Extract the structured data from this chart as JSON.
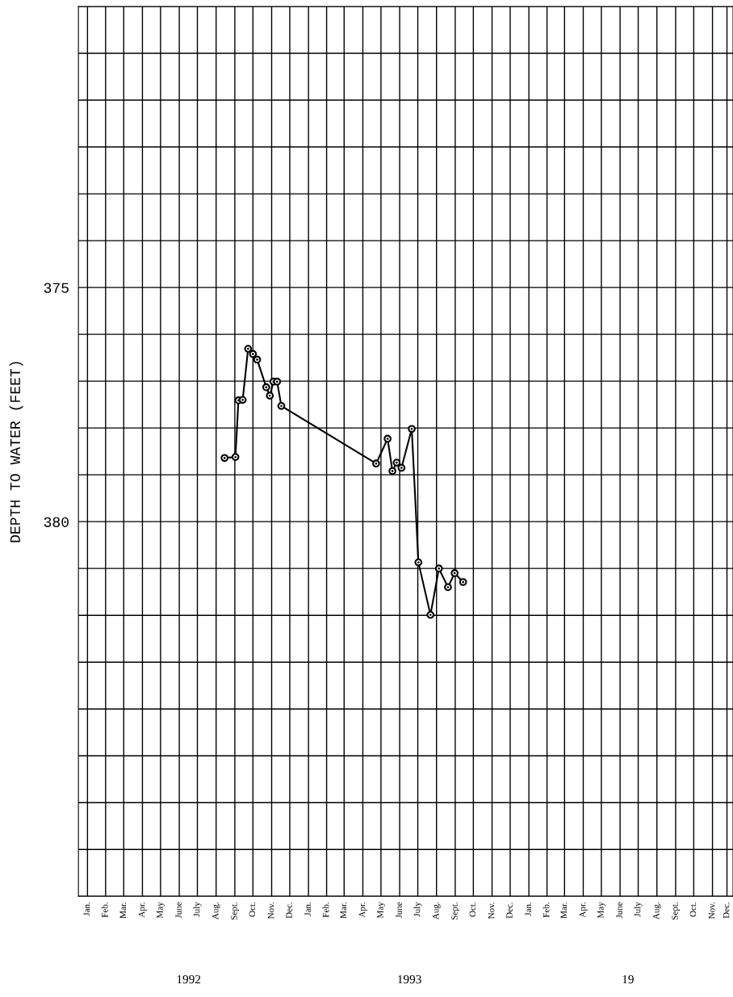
{
  "chart_data": {
    "type": "line",
    "ylabel": "DEPTH TO WATER (FEET)",
    "x": [
      "1992-08-30",
      "1992-09-17",
      "1992-09-22",
      "1992-09-29",
      "1992-10-08",
      "1992-10-16",
      "1992-10-23",
      "1992-11-07",
      "1992-11-13",
      "1992-11-19",
      "1992-11-25",
      "1992-12-02",
      "1993-05-08",
      "1993-05-27",
      "1993-06-04",
      "1993-06-11",
      "1993-06-19",
      "1993-07-06",
      "1993-07-17",
      "1993-08-06",
      "1993-08-20",
      "1993-09-04",
      "1993-09-15",
      "1993-09-29"
    ],
    "series": [
      {
        "color": "#000000",
        "values": [
          378.64,
          378.62,
          377.41,
          377.4,
          376.31,
          376.42,
          376.54,
          377.13,
          377.31,
          377.01,
          377.01,
          377.53,
          378.76,
          378.23,
          378.92,
          378.74,
          378.85,
          378.02,
          380.87,
          381.99,
          381.0,
          381.4,
          381.1,
          381.29
        ]
      }
    ],
    "ylim": [
      388,
      369
    ],
    "yticks": [
      {
        "value": 369,
        "label": null
      },
      {
        "value": 370,
        "label": null
      },
      {
        "value": 371,
        "label": null
      },
      {
        "value": 372,
        "label": null
      },
      {
        "value": 373,
        "label": null
      },
      {
        "value": 374,
        "label": null
      },
      375,
      {
        "value": 376,
        "label": null
      },
      {
        "value": 377,
        "label": null
      },
      {
        "value": 378,
        "label": null
      },
      {
        "value": 379,
        "label": null
      },
      380,
      {
        "value": 381,
        "label": null
      },
      {
        "value": 382,
        "label": null
      },
      {
        "value": 383,
        "label": null
      },
      {
        "value": 384,
        "label": null
      },
      {
        "value": 385,
        "label": null
      },
      {
        "value": 386,
        "label": null
      },
      {
        "value": 387,
        "label": null
      },
      {
        "value": 388,
        "label": null
      }
    ],
    "xlim": [
      "1992-01-01",
      "1994-12-20"
    ],
    "xticks": [
      {
        "value": "1992-01-16",
        "label": "Jan."
      },
      {
        "value": "1992-02-15",
        "label": "Feb."
      },
      {
        "value": "1992-03-16",
        "label": "Mar."
      },
      {
        "value": "1992-04-16",
        "label": "Apr."
      },
      {
        "value": "1992-05-16",
        "label": "May"
      },
      {
        "value": "1992-06-16",
        "label": "June"
      },
      {
        "value": "1992-07-16",
        "label": "July"
      },
      {
        "value": "1992-08-16",
        "label": "Aug."
      },
      {
        "value": "1992-09-16",
        "label": "Sept."
      },
      {
        "value": "1992-10-16",
        "label": "Oct."
      },
      {
        "value": "1992-11-16",
        "label": "Nov."
      },
      {
        "value": "1992-12-16",
        "label": "Dec."
      },
      {
        "value": "1993-01-16",
        "label": "Jan."
      },
      {
        "value": "1993-02-15",
        "label": "Feb."
      },
      {
        "value": "1993-03-16",
        "label": "Mar."
      },
      {
        "value": "1993-04-16",
        "label": "Apr."
      },
      {
        "value": "1993-05-16",
        "label": "May"
      },
      {
        "value": "1993-06-16",
        "label": "June"
      },
      {
        "value": "1993-07-16",
        "label": "July"
      },
      {
        "value": "1993-08-16",
        "label": "Aug."
      },
      {
        "value": "1993-09-16",
        "label": "Sept."
      },
      {
        "value": "1993-10-16",
        "label": "Oct."
      },
      {
        "value": "1993-11-16",
        "label": "Nov."
      },
      {
        "value": "1993-12-16",
        "label": "Dec."
      },
      {
        "value": "1994-01-16",
        "label": "Jan."
      },
      {
        "value": "1994-02-15",
        "label": "Feb."
      },
      {
        "value": "1994-03-16",
        "label": "Mar."
      },
      {
        "value": "1994-04-16",
        "label": "Apr."
      },
      {
        "value": "1994-05-16",
        "label": "May"
      },
      {
        "value": "1994-06-16",
        "label": "June"
      },
      {
        "value": "1994-07-16",
        "label": "July"
      },
      {
        "value": "1994-08-16",
        "label": "Aug."
      },
      {
        "value": "1994-09-16",
        "label": "Sept."
      },
      {
        "value": "1994-10-16",
        "label": "Oct."
      },
      {
        "value": "1994-11-16",
        "label": "Nov."
      },
      {
        "value": "1994-12-10",
        "label": "Dec."
      }
    ],
    "annotations": [
      "1992",
      "1993",
      "19"
    ],
    "grid": true,
    "marker": "circle",
    "line_style": "solid"
  }
}
